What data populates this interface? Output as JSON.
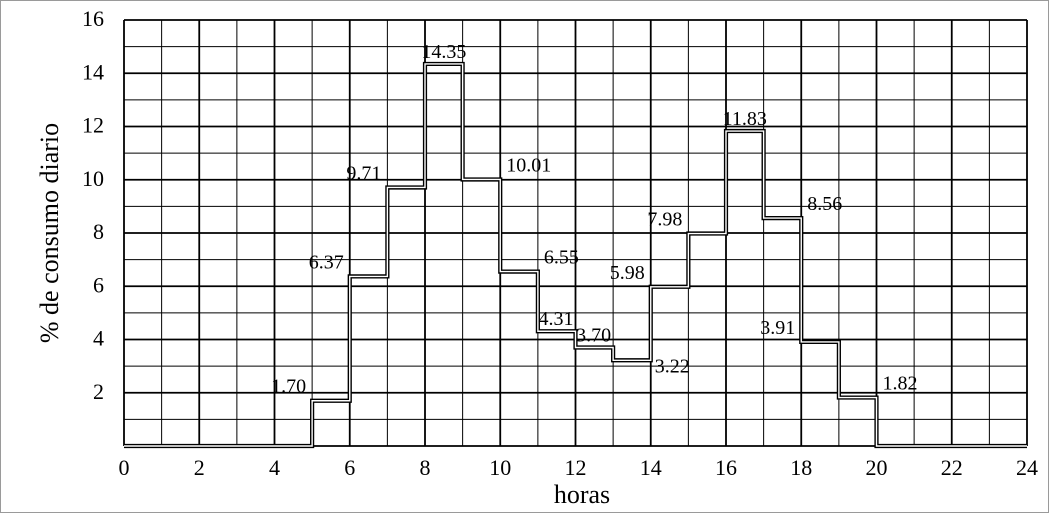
{
  "chart_data": {
    "type": "line",
    "xlabel": "horas",
    "ylabel": "% de consumo diario",
    "xlim": [
      0,
      24
    ],
    "ylim": [
      0,
      16
    ],
    "x_ticks": [
      "0",
      "2",
      "4",
      "6",
      "8",
      "10",
      "12",
      "14",
      "16",
      "18",
      "20",
      "22",
      "24"
    ],
    "y_ticks": [
      "2",
      "4",
      "6",
      "8",
      "10",
      "12",
      "14",
      "16"
    ],
    "grid": true,
    "step": "post",
    "series": [
      {
        "hours": [
          0,
          1,
          2,
          3,
          4,
          5,
          6,
          7,
          8,
          9,
          10,
          11,
          12,
          13,
          14,
          15,
          16,
          17,
          18,
          19,
          20,
          21,
          22,
          23
        ],
        "values": [
          0,
          0,
          0,
          0,
          0,
          1.7,
          6.37,
          9.71,
          14.35,
          10.01,
          6.55,
          4.31,
          3.7,
          3.22,
          5.98,
          7.98,
          11.83,
          8.56,
          3.91,
          1.82,
          0,
          0,
          0,
          0
        ]
      }
    ],
    "data_labels": [
      {
        "hour": 5,
        "text": "1.70"
      },
      {
        "hour": 6,
        "text": "6.37"
      },
      {
        "hour": 7,
        "text": "9.71"
      },
      {
        "hour": 8,
        "text": "14.35"
      },
      {
        "hour": 9,
        "text": "10.01"
      },
      {
        "hour": 10,
        "text": "6.55"
      },
      {
        "hour": 11,
        "text": "4.31"
      },
      {
        "hour": 12,
        "text": "3.70"
      },
      {
        "hour": 13,
        "text": "3.22"
      },
      {
        "hour": 14,
        "text": "5.98"
      },
      {
        "hour": 15,
        "text": "7.98"
      },
      {
        "hour": 16,
        "text": "11.83"
      },
      {
        "hour": 17,
        "text": "8.56"
      },
      {
        "hour": 18,
        "text": "3.91"
      },
      {
        "hour": 19,
        "text": "1.82"
      }
    ]
  }
}
